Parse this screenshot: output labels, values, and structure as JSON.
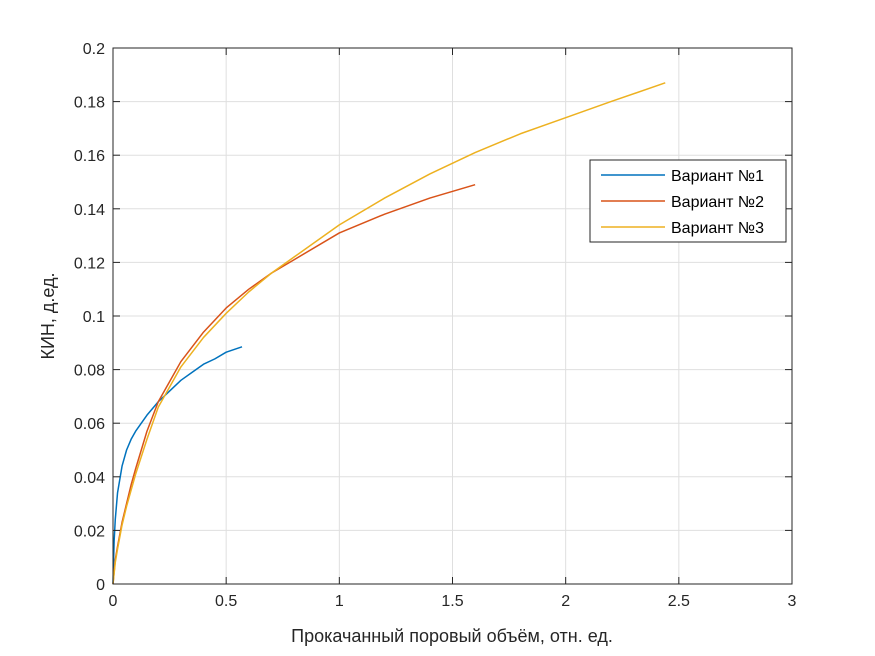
{
  "chart_data": {
    "type": "line",
    "xlabel": "Прокачанный поровый объём, отн. ед.",
    "ylabel": "КИН, д.ед.",
    "xlim": [
      0,
      3
    ],
    "ylim": [
      0,
      0.2
    ],
    "xticks": [
      0,
      0.5,
      1,
      1.5,
      2,
      2.5,
      3
    ],
    "xtick_labels": [
      "0",
      "0.5",
      "1",
      "1.5",
      "2",
      "2.5",
      "3"
    ],
    "yticks": [
      0,
      0.02,
      0.04,
      0.06,
      0.08,
      0.1,
      0.12,
      0.14,
      0.16,
      0.18,
      0.2
    ],
    "ytick_labels": [
      "0",
      "0.02",
      "0.04",
      "0.06",
      "0.08",
      "0.1",
      "0.12",
      "0.14",
      "0.16",
      "0.18",
      "0.2"
    ],
    "grid": true,
    "legend_position": "top-right",
    "series": [
      {
        "name": "Вариант №1",
        "color": "#0072BD",
        "x": [
          0,
          0.005,
          0.01,
          0.02,
          0.04,
          0.06,
          0.08,
          0.1,
          0.15,
          0.2,
          0.25,
          0.3,
          0.35,
          0.4,
          0.45,
          0.5,
          0.57
        ],
        "y": [
          0,
          0.016,
          0.024,
          0.034,
          0.044,
          0.05,
          0.054,
          0.057,
          0.063,
          0.068,
          0.072,
          0.076,
          0.079,
          0.082,
          0.084,
          0.0865,
          0.0885
        ]
      },
      {
        "name": "Вариант №2",
        "color": "#D95319",
        "x": [
          0,
          0.01,
          0.02,
          0.04,
          0.06,
          0.08,
          0.1,
          0.15,
          0.2,
          0.3,
          0.4,
          0.5,
          0.6,
          0.7,
          0.8,
          1.0,
          1.2,
          1.4,
          1.6
        ],
        "y": [
          0,
          0.009,
          0.014,
          0.023,
          0.03,
          0.037,
          0.043,
          0.057,
          0.068,
          0.083,
          0.094,
          0.103,
          0.11,
          0.116,
          0.121,
          0.131,
          0.138,
          0.144,
          0.149
        ]
      },
      {
        "name": "Вариант №3",
        "color": "#EDB120",
        "x": [
          0,
          0.01,
          0.02,
          0.04,
          0.06,
          0.08,
          0.1,
          0.15,
          0.2,
          0.3,
          0.4,
          0.5,
          0.6,
          0.7,
          0.8,
          1.0,
          1.2,
          1.4,
          1.6,
          1.8,
          2.0,
          2.2,
          2.44
        ],
        "y": [
          0,
          0.008,
          0.013,
          0.022,
          0.029,
          0.035,
          0.041,
          0.054,
          0.066,
          0.081,
          0.092,
          0.101,
          0.109,
          0.116,
          0.122,
          0.134,
          0.144,
          0.153,
          0.161,
          0.168,
          0.174,
          0.18,
          0.187
        ]
      }
    ]
  }
}
